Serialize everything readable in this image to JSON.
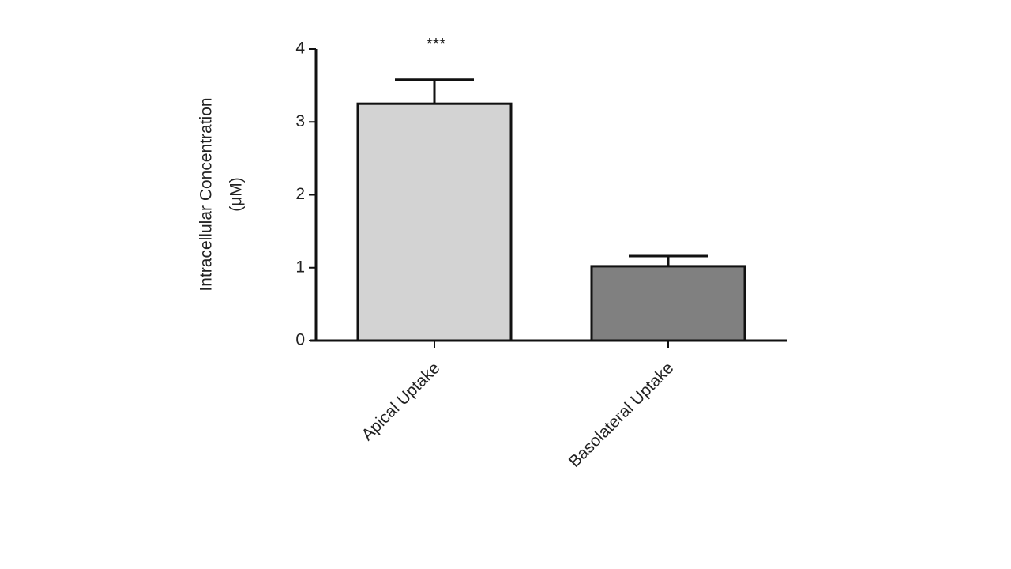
{
  "chart_data": {
    "type": "bar",
    "ylabel": [
      "Intracellular Concentration",
      "(μM)"
    ],
    "categories": [
      "Apical Uptake",
      "Basolateral Uptake"
    ],
    "values": [
      3.25,
      1.02
    ],
    "errors": [
      0.33,
      0.14
    ],
    "colors": [
      "#d3d3d3",
      "#808080"
    ],
    "annotations": [
      "***",
      null
    ],
    "ylim": [
      0,
      4
    ],
    "yticks": [
      0,
      1,
      2,
      3,
      4
    ]
  }
}
